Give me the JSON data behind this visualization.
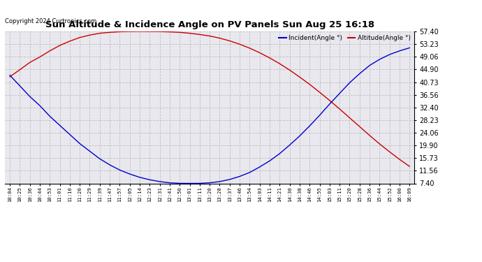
{
  "title": "Sun Altitude & Incidence Angle on PV Panels Sun Aug 25 16:18",
  "copyright": "Copyright 2024 Curtronics.com",
  "legend_incident": "Incident(Angle °)",
  "legend_altitude": "Altitude(Angle °)",
  "incident_color": "#0000cc",
  "altitude_color": "#cc0000",
  "bg_color": "#ffffff",
  "plot_bg_color": "#e8e8ee",
  "grid_color": "#bbbbbb",
  "yticks": [
    7.4,
    11.56,
    15.73,
    19.9,
    24.06,
    28.23,
    32.4,
    36.56,
    40.73,
    44.9,
    49.06,
    53.23,
    57.4
  ],
  "ylim": [
    7.4,
    57.4
  ],
  "x_labels": [
    "10:04",
    "10:25",
    "10:36",
    "10:44",
    "10:53",
    "11:01",
    "11:10",
    "11:20",
    "11:29",
    "11:39",
    "11:47",
    "11:57",
    "12:05",
    "12:14",
    "12:23",
    "12:31",
    "12:41",
    "12:50",
    "13:01",
    "13:11",
    "13:20",
    "13:28",
    "13:37",
    "13:46",
    "13:54",
    "14:03",
    "14:11",
    "14:21",
    "14:30",
    "14:38",
    "14:46",
    "14:55",
    "15:03",
    "15:11",
    "15:20",
    "15:28",
    "15:36",
    "15:44",
    "15:52",
    "16:00",
    "16:09"
  ],
  "altitude_values": [
    42.5,
    44.8,
    47.2,
    49.0,
    51.0,
    52.8,
    54.2,
    55.4,
    56.2,
    56.8,
    57.1,
    57.3,
    57.38,
    57.4,
    57.38,
    57.35,
    57.25,
    57.1,
    56.8,
    56.4,
    55.9,
    55.2,
    54.3,
    53.2,
    51.9,
    50.4,
    48.7,
    46.8,
    44.7,
    42.4,
    40.0,
    37.4,
    34.7,
    31.9,
    29.0,
    26.1,
    23.2,
    20.4,
    17.8,
    15.3,
    13.0
  ],
  "incident_values": [
    43.0,
    39.5,
    36.0,
    33.0,
    29.5,
    26.5,
    23.5,
    20.5,
    18.0,
    15.5,
    13.5,
    11.8,
    10.5,
    9.4,
    8.6,
    8.0,
    7.6,
    7.42,
    7.4,
    7.42,
    7.6,
    8.0,
    8.7,
    9.7,
    11.0,
    12.8,
    14.8,
    17.2,
    20.0,
    23.0,
    26.3,
    29.8,
    33.5,
    37.0,
    40.5,
    43.5,
    46.2,
    48.2,
    49.8,
    51.0,
    52.0
  ]
}
